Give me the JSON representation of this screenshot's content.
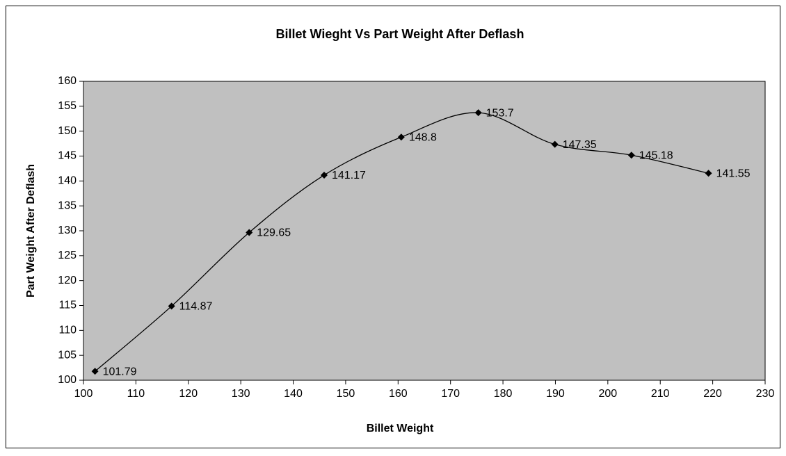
{
  "chart_data": {
    "type": "line",
    "title": "Billet Wieght Vs Part Weight After Deflash",
    "x_label": "Billet Weight",
    "y_label": "Part Weight After Deflash",
    "x": [
      102.2,
      116.8,
      131.6,
      145.9,
      160.6,
      175.3,
      189.9,
      204.5,
      219.2
    ],
    "values": [
      101.79,
      114.87,
      129.65,
      141.17,
      148.8,
      153.7,
      147.35,
      145.18,
      141.55
    ],
    "color": "#000000",
    "plot_background": "#c0c0c0",
    "smooth": true,
    "grid": false,
    "xlim": [
      100,
      230
    ],
    "xticks": [
      100,
      110,
      120,
      130,
      140,
      150,
      160,
      170,
      180,
      190,
      200,
      210,
      220,
      230
    ],
    "ylim": [
      100,
      160
    ],
    "yticks": [
      100,
      105,
      110,
      115,
      120,
      125,
      130,
      135,
      140,
      145,
      150,
      155,
      160
    ]
  }
}
